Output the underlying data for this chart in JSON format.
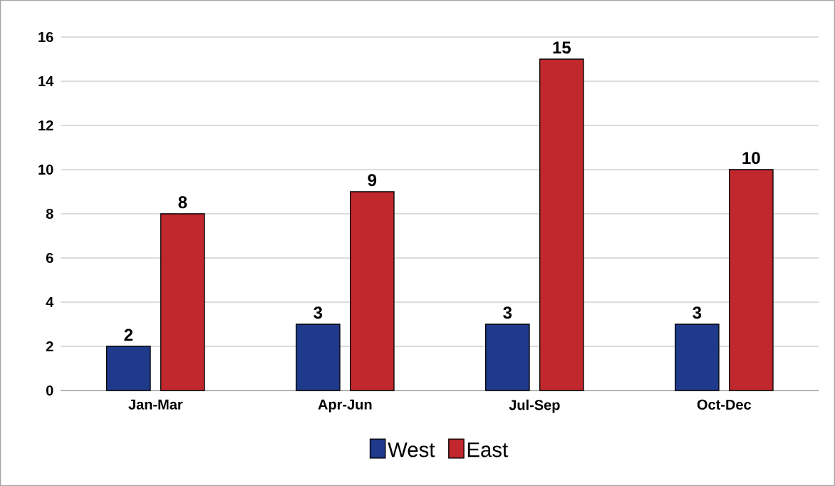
{
  "chart_data": {
    "type": "bar",
    "categories": [
      "Jan-Mar",
      "Apr-Jun",
      "Jul-Sep",
      "Oct-Dec"
    ],
    "series": [
      {
        "name": "West",
        "color": "#1f3a8a",
        "values": [
          2,
          3,
          3,
          3
        ]
      },
      {
        "name": "East",
        "color": "#c0282d",
        "values": [
          8,
          9,
          15,
          10
        ]
      }
    ],
    "ylim": [
      0,
      16
    ],
    "yticks": [
      0,
      2,
      4,
      6,
      8,
      10,
      12,
      14,
      16
    ],
    "grid": "y",
    "legend": "bottom",
    "data_labels": true
  }
}
